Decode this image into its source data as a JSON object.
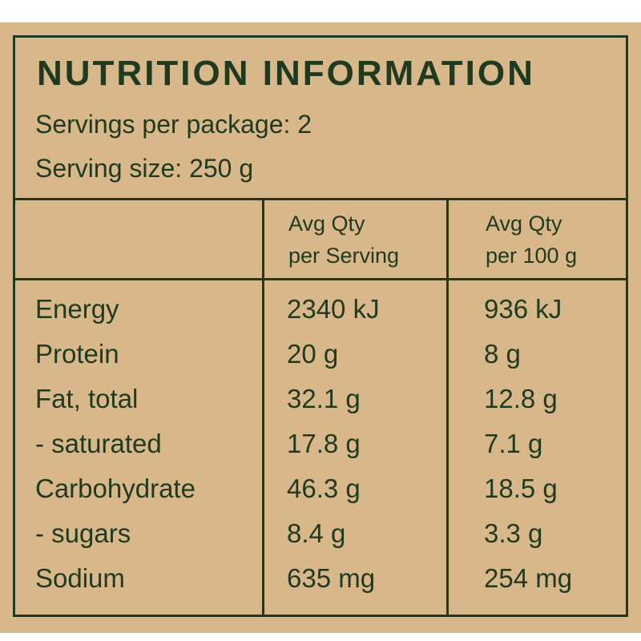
{
  "header": {
    "title": "NUTRITION INFORMATION",
    "servings": "Servings per package: 2",
    "serving_size": "Serving size: 250 g"
  },
  "table": {
    "columns": [
      [
        "Avg Qty",
        "per Serving"
      ],
      [
        "Avg Qty",
        "per 100 g"
      ]
    ],
    "rows": [
      [
        "Energy",
        "2340 kJ",
        "936 kJ"
      ],
      [
        "Protein",
        "20 g",
        "8 g"
      ],
      [
        "Fat, total",
        "32.1 g",
        "12.8 g"
      ],
      [
        "- saturated",
        "17.8 g",
        "7.1 g"
      ],
      [
        "Carbohydrate",
        "46.3 g",
        "18.5 g"
      ],
      [
        "- sugars",
        "8.4 g",
        "3.3 g"
      ],
      [
        "Sodium",
        "635 mg",
        "254 mg"
      ]
    ]
  }
}
